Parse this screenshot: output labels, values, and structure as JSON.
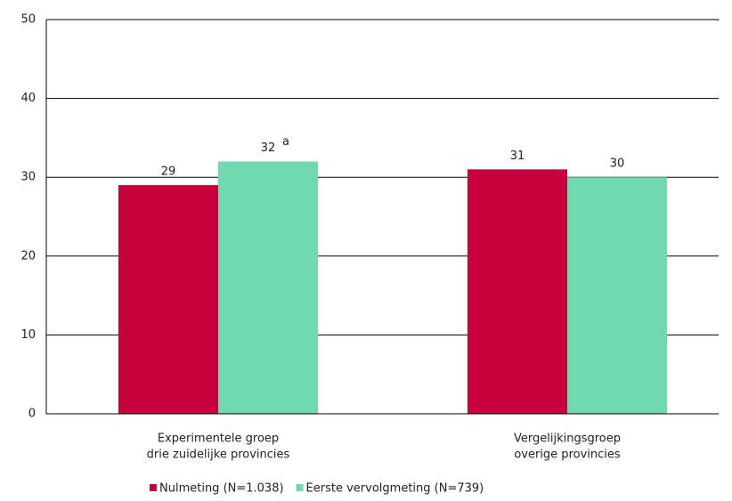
{
  "chart_data": {
    "type": "bar",
    "categories": [
      [
        "Experimentele groep",
        "drie zuidelijke provincies"
      ],
      [
        "Vergelijkingsgroep",
        "overige provincies"
      ]
    ],
    "series": [
      {
        "name": "Nulmeting (N=1.038)",
        "color": "#c8003c",
        "values": [
          29,
          31
        ]
      },
      {
        "name": "Eerste vervolgmeting (N=739)",
        "color": "#6fd8ae",
        "values": [
          32,
          30
        ]
      }
    ],
    "annotation": "a",
    "ylim": [
      0,
      50
    ],
    "yticks": [
      0,
      10,
      20,
      30,
      40,
      50
    ],
    "grid": true,
    "legend": "bottom"
  }
}
